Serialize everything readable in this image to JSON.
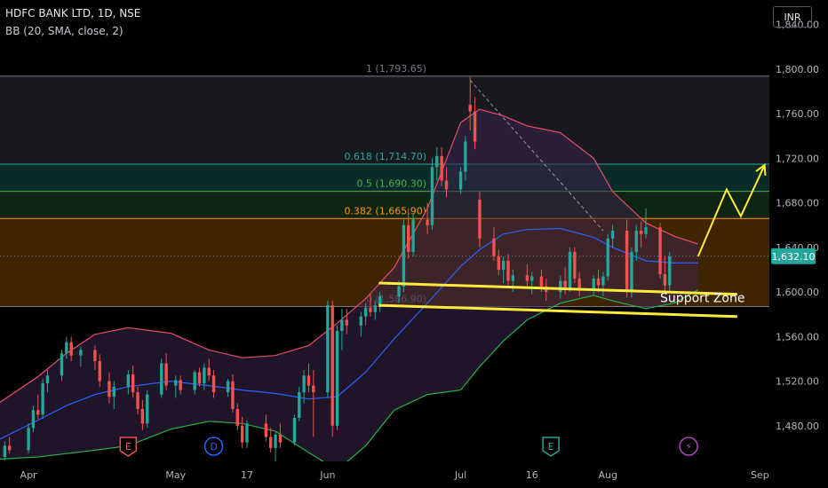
{
  "header": {
    "symbol_line": "HDFC BANK LTD, 1D, NSE",
    "indicator_line": "BB (20, SMA, close, 2)",
    "currency": "INR"
  },
  "colors": {
    "background": "#000000",
    "up_candle": "#26a69a",
    "down_candle": "#ef5350",
    "bb_upper": "#e84e6a",
    "bb_basis": "#2962ff",
    "bb_lower": "#22b14c",
    "support_line": "#ffeb3b",
    "projection": "#ffeb3b",
    "price_tag": "#26a69a"
  },
  "chart_data": {
    "type": "candlestick",
    "title": "HDFC BANK LTD, 1D, NSE",
    "y_axis": {
      "ticks": [
        "1,840.00",
        "1,800.00",
        "1,760.00",
        "1,720.00",
        "1,680.00",
        "1,640.00",
        "1,600.00",
        "1,560.00",
        "1,520.00",
        "1,480.00"
      ],
      "tick_values": [
        1840,
        1800,
        1760,
        1720,
        1680,
        1640,
        1600,
        1560,
        1520,
        1480
      ],
      "range": [
        1448,
        1862
      ]
    },
    "x_axis": {
      "labels": [
        "Apr",
        "May",
        "17",
        "Jun",
        "Jul",
        "16",
        "Aug",
        "Sep"
      ],
      "label_dates": [
        "2024-04-01",
        "2024-05-02",
        "2024-05-17",
        "2024-06-03",
        "2024-07-01",
        "2024-07-16",
        "2024-08-01",
        "2024-09-02"
      ],
      "range": [
        "2024-03-26",
        "2024-09-04"
      ]
    },
    "current_price": {
      "label": "1,632.10",
      "value": 1632.1
    },
    "fibonacci_levels": [
      {
        "label": "1 (1,793.65)",
        "value": 1793.65,
        "color": "#787b86"
      },
      {
        "label": "0.618 (1,714.70)",
        "value": 1714.7,
        "color": "#26a69a"
      },
      {
        "label": "0.5 (1,690.30)",
        "value": 1690.3,
        "color": "#4caf50"
      },
      {
        "label": "0.382 (1,665.90)",
        "value": 1665.9,
        "color": "#ff9800"
      },
      {
        "label": "0 (1,586.90)",
        "value": 1586.9,
        "color": "#787b86"
      }
    ],
    "fib_zones": [
      {
        "from": 1793.65,
        "to": 1714.7,
        "color": "#2a2e39",
        "opacity": 0.55
      },
      {
        "from": 1714.7,
        "to": 1690.3,
        "color": "#0e3a34",
        "opacity": 0.75
      },
      {
        "from": 1690.3,
        "to": 1665.9,
        "color": "#123218",
        "opacity": 0.75
      },
      {
        "from": 1665.9,
        "to": 1586.9,
        "color": "#5a3300",
        "opacity": 0.7
      }
    ],
    "annotations": [
      {
        "text": "Support Zone",
        "date": "2024-08-12",
        "value": 1591
      }
    ],
    "support_zone": {
      "upper": {
        "from": {
          "date": "2024-06-14",
          "value": 1608
        },
        "to": {
          "date": "2024-08-28",
          "value": 1598
        }
      },
      "lower": {
        "from": {
          "date": "2024-06-14",
          "value": 1588
        },
        "to": {
          "date": "2024-08-28",
          "value": 1578
        }
      }
    },
    "projection": [
      {
        "date": "2024-08-20",
        "value": 1632
      },
      {
        "date": "2024-08-26",
        "value": 1692
      },
      {
        "date": "2024-08-29",
        "value": 1668
      },
      {
        "date": "2024-09-03",
        "value": 1714
      }
    ],
    "trend_line": [
      {
        "date": "2024-07-03",
        "value": 1790
      },
      {
        "date": "2024-07-31",
        "value": 1655
      }
    ],
    "event_markers": [
      {
        "date": "2024-04-22",
        "kind": "earnings",
        "label": "E",
        "color": "#ef5350"
      },
      {
        "date": "2024-05-10",
        "kind": "dividend",
        "label": "D",
        "color": "#2962ff"
      },
      {
        "date": "2024-07-20",
        "kind": "earnings",
        "label": "E",
        "color": "#26a69a"
      },
      {
        "date": "2024-08-18",
        "kind": "split",
        "label": "⚡",
        "color": "#ab47bc"
      }
    ],
    "bollinger": {
      "upper": [
        [
          "2024-03-26",
          1501
        ],
        [
          "2024-04-03",
          1524
        ],
        [
          "2024-04-09",
          1545
        ],
        [
          "2024-04-15",
          1562
        ],
        [
          "2024-04-22",
          1568
        ],
        [
          "2024-05-01",
          1563
        ],
        [
          "2024-05-09",
          1548
        ],
        [
          "2024-05-16",
          1541
        ],
        [
          "2024-05-23",
          1543
        ],
        [
          "2024-05-30",
          1552
        ],
        [
          "2024-06-05",
          1572
        ],
        [
          "2024-06-11",
          1594
        ],
        [
          "2024-06-17",
          1622
        ],
        [
          "2024-06-24",
          1675
        ],
        [
          "2024-07-01",
          1752
        ],
        [
          "2024-07-05",
          1764
        ],
        [
          "2024-07-10",
          1758
        ],
        [
          "2024-07-15",
          1749
        ],
        [
          "2024-07-22",
          1743
        ],
        [
          "2024-07-29",
          1720
        ],
        [
          "2024-08-02",
          1690
        ],
        [
          "2024-08-09",
          1662
        ],
        [
          "2024-08-15",
          1650
        ],
        [
          "2024-08-20",
          1643
        ]
      ],
      "basis": [
        [
          "2024-03-26",
          1468
        ],
        [
          "2024-04-03",
          1485
        ],
        [
          "2024-04-09",
          1498
        ],
        [
          "2024-04-15",
          1508
        ],
        [
          "2024-04-22",
          1515
        ],
        [
          "2024-05-01",
          1520
        ],
        [
          "2024-05-09",
          1516
        ],
        [
          "2024-05-16",
          1512
        ],
        [
          "2024-05-23",
          1509
        ],
        [
          "2024-05-30",
          1504
        ],
        [
          "2024-06-05",
          1506
        ],
        [
          "2024-06-11",
          1528
        ],
        [
          "2024-06-17",
          1558
        ],
        [
          "2024-06-24",
          1590
        ],
        [
          "2024-07-01",
          1623
        ],
        [
          "2024-07-05",
          1638
        ],
        [
          "2024-07-10",
          1652
        ],
        [
          "2024-07-15",
          1656
        ],
        [
          "2024-07-22",
          1657
        ],
        [
          "2024-07-29",
          1649
        ],
        [
          "2024-08-02",
          1640
        ],
        [
          "2024-08-09",
          1628
        ],
        [
          "2024-08-15",
          1626
        ],
        [
          "2024-08-20",
          1626
        ]
      ],
      "lower": [
        [
          "2024-03-26",
          1450
        ],
        [
          "2024-04-03",
          1452
        ],
        [
          "2024-04-09",
          1455
        ],
        [
          "2024-04-15",
          1458
        ],
        [
          "2024-04-22",
          1462
        ],
        [
          "2024-05-01",
          1477
        ],
        [
          "2024-05-09",
          1484
        ],
        [
          "2024-05-16",
          1482
        ],
        [
          "2024-05-23",
          1475
        ],
        [
          "2024-05-30",
          1456
        ],
        [
          "2024-06-05",
          1440
        ],
        [
          "2024-06-11",
          1462
        ],
        [
          "2024-06-17",
          1494
        ],
        [
          "2024-06-24",
          1508
        ],
        [
          "2024-07-01",
          1512
        ],
        [
          "2024-07-05",
          1533
        ],
        [
          "2024-07-10",
          1556
        ],
        [
          "2024-07-15",
          1575
        ],
        [
          "2024-07-22",
          1590
        ],
        [
          "2024-07-29",
          1597
        ],
        [
          "2024-08-02",
          1592
        ],
        [
          "2024-08-09",
          1585
        ],
        [
          "2024-08-15",
          1590
        ],
        [
          "2024-08-20",
          1602
        ]
      ]
    },
    "candles": [
      [
        "2024-03-27",
        1452,
        1466,
        1449,
        1462
      ],
      [
        "2024-03-28",
        1462,
        1470,
        1455,
        1458
      ],
      [
        "2024-04-01",
        1458,
        1482,
        1455,
        1478
      ],
      [
        "2024-04-02",
        1478,
        1498,
        1474,
        1494
      ],
      [
        "2024-04-03",
        1494,
        1508,
        1486,
        1490
      ],
      [
        "2024-04-04",
        1490,
        1522,
        1486,
        1518
      ],
      [
        "2024-04-05",
        1518,
        1530,
        1510,
        1525
      ],
      [
        "2024-04-08",
        1525,
        1548,
        1520,
        1545
      ],
      [
        "2024-04-09",
        1545,
        1560,
        1540,
        1555
      ],
      [
        "2024-04-10",
        1555,
        1560,
        1538,
        1543
      ],
      [
        "2024-04-12",
        1543,
        1551,
        1533,
        1548
      ],
      [
        "2024-04-15",
        1548,
        1552,
        1530,
        1538
      ],
      [
        "2024-04-16",
        1538,
        1544,
        1515,
        1520
      ],
      [
        "2024-04-18",
        1520,
        1528,
        1500,
        1506
      ],
      [
        "2024-04-19",
        1506,
        1520,
        1495,
        1515
      ],
      [
        "2024-04-22",
        1515,
        1530,
        1508,
        1526
      ],
      [
        "2024-04-23",
        1526,
        1534,
        1505,
        1510
      ],
      [
        "2024-04-24",
        1510,
        1515,
        1490,
        1495
      ],
      [
        "2024-04-25",
        1495,
        1503,
        1476,
        1482
      ],
      [
        "2024-04-26",
        1482,
        1512,
        1478,
        1508
      ],
      [
        "2024-04-29",
        1508,
        1540,
        1505,
        1536
      ],
      [
        "2024-04-30",
        1536,
        1545,
        1512,
        1516
      ],
      [
        "2024-05-02",
        1516,
        1525,
        1505,
        1521
      ],
      [
        "2024-05-03",
        1521,
        1525,
        1508,
        1512
      ],
      [
        "2024-05-06",
        1512,
        1530,
        1508,
        1528
      ],
      [
        "2024-05-07",
        1528,
        1532,
        1515,
        1518
      ],
      [
        "2024-05-08",
        1518,
        1536,
        1512,
        1532
      ],
      [
        "2024-05-09",
        1532,
        1540,
        1520,
        1525
      ],
      [
        "2024-05-10",
        1525,
        1530,
        1505,
        1510
      ],
      [
        "2024-05-13",
        1510,
        1522,
        1506,
        1520
      ],
      [
        "2024-05-14",
        1520,
        1526,
        1492,
        1495
      ],
      [
        "2024-05-15",
        1495,
        1500,
        1476,
        1480
      ],
      [
        "2024-05-16",
        1480,
        1488,
        1460,
        1465
      ],
      [
        "2024-05-17",
        1465,
        1485,
        1460,
        1482
      ],
      [
        "2024-05-21",
        1482,
        1490,
        1466,
        1470
      ],
      [
        "2024-05-22",
        1470,
        1478,
        1456,
        1460
      ],
      [
        "2024-05-23",
        1460,
        1475,
        1448,
        1472
      ],
      [
        "2024-05-24",
        1472,
        1482,
        1460,
        1465
      ],
      [
        "2024-05-27",
        1465,
        1490,
        1462,
        1487
      ],
      [
        "2024-05-28",
        1487,
        1515,
        1484,
        1510
      ],
      [
        "2024-05-29",
        1510,
        1530,
        1500,
        1525
      ],
      [
        "2024-05-30",
        1525,
        1536,
        1510,
        1516
      ],
      [
        "2024-05-31",
        1516,
        1530,
        1470,
        1510
      ],
      [
        "2024-06-03",
        1510,
        1592,
        1505,
        1588
      ],
      [
        "2024-06-04",
        1588,
        1592,
        1470,
        1480
      ],
      [
        "2024-06-05",
        1480,
        1570,
        1476,
        1565
      ],
      [
        "2024-06-06",
        1565,
        1585,
        1548,
        1575
      ],
      [
        "2024-06-07",
        1575,
        1585,
        1562,
        1570
      ],
      [
        "2024-06-10",
        1570,
        1582,
        1560,
        1578
      ],
      [
        "2024-06-11",
        1578,
        1590,
        1570,
        1586
      ],
      [
        "2024-06-12",
        1586,
        1598,
        1578,
        1582
      ],
      [
        "2024-06-13",
        1582,
        1592,
        1575,
        1588
      ],
      [
        "2024-06-14",
        1588,
        1600,
        1582,
        1596
      ],
      [
        "2024-06-18",
        1596,
        1610,
        1590,
        1605
      ],
      [
        "2024-06-19",
        1605,
        1665,
        1600,
        1660
      ],
      [
        "2024-06-20",
        1660,
        1675,
        1630,
        1636
      ],
      [
        "2024-06-21",
        1636,
        1670,
        1632,
        1665
      ],
      [
        "2024-06-24",
        1665,
        1680,
        1652,
        1660
      ],
      [
        "2024-06-25",
        1660,
        1720,
        1656,
        1712
      ],
      [
        "2024-06-26",
        1712,
        1730,
        1700,
        1722
      ],
      [
        "2024-06-27",
        1722,
        1730,
        1695,
        1700
      ],
      [
        "2024-06-28",
        1700,
        1712,
        1685,
        1692
      ],
      [
        "2024-07-01",
        1692,
        1712,
        1688,
        1708
      ],
      [
        "2024-07-02",
        1708,
        1740,
        1700,
        1735
      ],
      [
        "2024-07-03",
        1768,
        1793,
        1745,
        1762
      ],
      [
        "2024-07-04",
        1762,
        1775,
        1728,
        1735
      ],
      [
        "2024-07-05",
        1683,
        1690,
        1640,
        1648
      ],
      [
        "2024-07-08",
        1648,
        1658,
        1628,
        1632
      ],
      [
        "2024-07-09",
        1632,
        1638,
        1615,
        1620
      ],
      [
        "2024-07-10",
        1620,
        1632,
        1608,
        1628
      ],
      [
        "2024-07-11",
        1628,
        1634,
        1605,
        1610
      ],
      [
        "2024-07-12",
        1610,
        1620,
        1600,
        1615
      ],
      [
        "2024-07-15",
        1615,
        1625,
        1605,
        1610
      ],
      [
        "2024-07-16",
        1610,
        1618,
        1598,
        1614
      ],
      [
        "2024-07-18",
        1614,
        1620,
        1600,
        1605
      ],
      [
        "2024-07-19",
        1605,
        1612,
        1592,
        1600
      ],
      [
        "2024-07-22",
        1600,
        1615,
        1594,
        1610
      ],
      [
        "2024-07-23",
        1610,
        1622,
        1598,
        1603
      ],
      [
        "2024-07-24",
        1603,
        1640,
        1600,
        1636
      ],
      [
        "2024-07-25",
        1636,
        1640,
        1608,
        1612
      ],
      [
        "2024-07-26",
        1612,
        1618,
        1596,
        1602
      ],
      [
        "2024-07-29",
        1602,
        1615,
        1598,
        1612
      ],
      [
        "2024-07-30",
        1612,
        1620,
        1600,
        1606
      ],
      [
        "2024-07-31",
        1606,
        1618,
        1596,
        1614
      ],
      [
        "2024-08-01",
        1614,
        1652,
        1610,
        1648
      ],
      [
        "2024-08-02",
        1648,
        1660,
        1640,
        1655
      ],
      [
        "2024-08-05",
        1655,
        1665,
        1595,
        1600
      ],
      [
        "2024-08-06",
        1600,
        1640,
        1595,
        1636
      ],
      [
        "2024-08-07",
        1636,
        1660,
        1628,
        1655
      ],
      [
        "2024-08-08",
        1655,
        1663,
        1640,
        1652
      ],
      [
        "2024-08-09",
        1652,
        1675,
        1648,
        1658
      ],
      [
        "2024-08-12",
        1658,
        1662,
        1612,
        1616
      ],
      [
        "2024-08-13",
        1616,
        1632,
        1600,
        1606
      ],
      [
        "2024-08-14",
        1606,
        1636,
        1600,
        1632
      ]
    ]
  }
}
